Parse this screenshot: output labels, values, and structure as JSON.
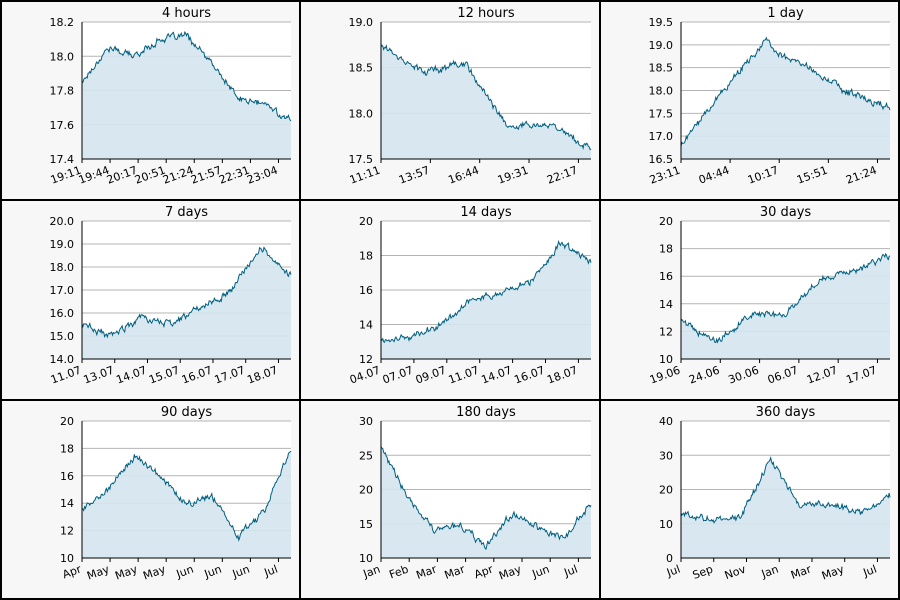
{
  "colors": {
    "line": "#005f7f",
    "fill": "#d5e6ee",
    "plot_bg": "#ffffff",
    "panel_bg": "#f7f7f7",
    "grid": "#b4b4b4"
  },
  "chart_data": [
    {
      "type": "area",
      "title": "4 hours",
      "ylim": [
        17.4,
        18.2
      ],
      "yticks": [
        "17.4",
        "17.6",
        "17.8",
        "18.0",
        "18.2"
      ],
      "xticks": [
        "19:11",
        "19:44",
        "20:17",
        "20:51",
        "21:24",
        "21:57",
        "22:31",
        "23:04"
      ],
      "x": [
        "19:11",
        "19:44",
        "20:17",
        "20:51",
        "21:24",
        "21:57",
        "22:31",
        "23:04",
        "23:20"
      ],
      "values": [
        17.85,
        18.05,
        18.0,
        18.1,
        18.12,
        17.95,
        17.75,
        17.72,
        17.62
      ],
      "grid": true
    },
    {
      "type": "area",
      "title": "12 hours",
      "ylim": [
        17.5,
        19.0
      ],
      "yticks": [
        "17.5",
        "18.0",
        "18.5",
        "19.0"
      ],
      "xticks": [
        "11:11",
        "13:57",
        "16:44",
        "19:31",
        "22:17"
      ],
      "x": [
        "11:11",
        "13:57",
        "16:44",
        "19:31",
        "22:17",
        "23:20"
      ],
      "values": [
        18.75,
        18.45,
        18.55,
        17.85,
        17.9,
        17.6
      ],
      "grid": true
    },
    {
      "type": "area",
      "title": "1 day",
      "ylim": [
        16.5,
        19.5
      ],
      "yticks": [
        "16.5",
        "17.0",
        "17.5",
        "18.0",
        "18.5",
        "19.0",
        "19.5"
      ],
      "xticks": [
        "23:11",
        "04:44",
        "10:17",
        "15:51",
        "21:24"
      ],
      "x": [
        "23:11",
        "04:44",
        "10:17",
        "15:51",
        "21:24",
        "23:20"
      ],
      "values": [
        16.8,
        18.0,
        19.05,
        18.5,
        17.95,
        17.6
      ],
      "grid": true
    },
    {
      "type": "area",
      "title": "7 days",
      "ylim": [
        14.0,
        20.0
      ],
      "yticks": [
        "14.0",
        "15.0",
        "16.0",
        "17.0",
        "18.0",
        "19.0",
        "20.0"
      ],
      "xticks": [
        "11.07",
        "13.07",
        "14.07",
        "15.07",
        "16.07",
        "17.07",
        "18.07"
      ],
      "x": [
        "11.07",
        "13.07",
        "14.07",
        "15.07",
        "16.07",
        "17.07",
        "18.07",
        "18.07"
      ],
      "values": [
        15.5,
        15.0,
        15.8,
        15.5,
        16.3,
        17.0,
        18.9,
        17.6
      ],
      "grid": true
    },
    {
      "type": "area",
      "title": "14 days",
      "ylim": [
        12,
        20
      ],
      "yticks": [
        "12",
        "14",
        "16",
        "18",
        "20"
      ],
      "xticks": [
        "04.07",
        "07.07",
        "09.07",
        "11.07",
        "14.07",
        "16.07",
        "18.07"
      ],
      "x": [
        "04.07",
        "07.07",
        "09.07",
        "11.07",
        "14.07",
        "16.07",
        "18.07",
        "18.07"
      ],
      "values": [
        13.1,
        13.3,
        14.0,
        15.5,
        15.8,
        16.5,
        18.8,
        17.6
      ],
      "grid": true
    },
    {
      "type": "area",
      "title": "30 days",
      "ylim": [
        10,
        20
      ],
      "yticks": [
        "10",
        "12",
        "14",
        "16",
        "18",
        "20"
      ],
      "xticks": [
        "19.06",
        "24.06",
        "30.06",
        "06.07",
        "12.07",
        "17.07"
      ],
      "x": [
        "19.06",
        "24.06",
        "30.06",
        "06.07",
        "12.07",
        "17.07",
        "19.07"
      ],
      "values": [
        12.8,
        11.2,
        13.2,
        13.2,
        15.8,
        16.5,
        17.6
      ],
      "grid": true
    },
    {
      "type": "area",
      "title": "90 days",
      "ylim": [
        10,
        20
      ],
      "yticks": [
        "10",
        "12",
        "14",
        "16",
        "18",
        "20"
      ],
      "xticks": [
        "Apr",
        "May",
        "May",
        "May",
        "Jun",
        "Jun",
        "Jun",
        "Jul"
      ],
      "x": [
        "Apr",
        "May",
        "May",
        "May",
        "Jun",
        "Jun",
        "Jun",
        "Jul",
        "Jul"
      ],
      "values": [
        13.5,
        15.0,
        17.5,
        16.0,
        13.8,
        14.5,
        11.5,
        13.5,
        18.0
      ],
      "grid": true
    },
    {
      "type": "area",
      "title": "180 days",
      "ylim": [
        10,
        30
      ],
      "yticks": [
        "10",
        "15",
        "20",
        "25",
        "30"
      ],
      "xticks": [
        "Jan",
        "Feb",
        "Mar",
        "Mar",
        "Apr",
        "May",
        "Jun",
        "Jul"
      ],
      "x": [
        "Jan",
        "Feb",
        "Mar",
        "Mar",
        "Apr",
        "May",
        "Jun",
        "Jul",
        "Jul"
      ],
      "values": [
        26.0,
        19.0,
        14.0,
        14.5,
        12.0,
        16.5,
        14.5,
        13.0,
        18.0
      ],
      "grid": true
    },
    {
      "type": "area",
      "title": "360 days",
      "ylim": [
        0,
        40
      ],
      "yticks": [
        "0",
        "10",
        "20",
        "30",
        "40"
      ],
      "xticks": [
        "Jul",
        "Sep",
        "Nov",
        "Jan",
        "Mar",
        "May",
        "Jul"
      ],
      "x": [
        "Jul",
        "Sep",
        "Nov",
        "Jan",
        "Mar",
        "May",
        "Jul",
        "Jul"
      ],
      "values": [
        13.0,
        11.0,
        12.0,
        29.0,
        15.0,
        16.0,
        13.0,
        18.0
      ],
      "grid": true
    }
  ]
}
